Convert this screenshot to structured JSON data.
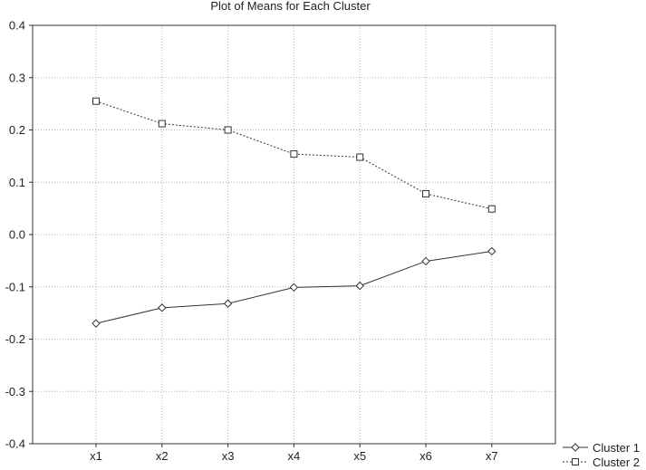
{
  "chart_data": {
    "type": "line",
    "title": "Plot of Means for Each Cluster",
    "xlabel": "",
    "ylabel": "",
    "categories": [
      "x1",
      "x2",
      "x3",
      "x4",
      "x5",
      "x6",
      "x7"
    ],
    "ylim": [
      -0.4,
      0.4
    ],
    "yticks": [
      -0.4,
      -0.3,
      -0.2,
      -0.1,
      0.0,
      0.1,
      0.2,
      0.3,
      0.4
    ],
    "ytick_labels": [
      "-0.4",
      "-0.3",
      "-0.2",
      "-0.1",
      "0.0",
      "0.1",
      "0.2",
      "0.3",
      "0.4"
    ],
    "grid": true,
    "legend_position": "bottom-right",
    "series": [
      {
        "name": "Cluster 1",
        "line_style": "solid",
        "marker": "diamond",
        "values": [
          -0.17,
          -0.14,
          -0.132,
          -0.101,
          -0.098,
          -0.051,
          -0.032
        ]
      },
      {
        "name": "Cluster 2",
        "line_style": "dotted",
        "marker": "square",
        "values": [
          0.255,
          0.212,
          0.2,
          0.154,
          0.148,
          0.078,
          0.049
        ]
      }
    ],
    "colors": {
      "line": "#333333",
      "grid": "#b0b0b0",
      "axis": "#333333",
      "background": "#ffffff"
    }
  }
}
